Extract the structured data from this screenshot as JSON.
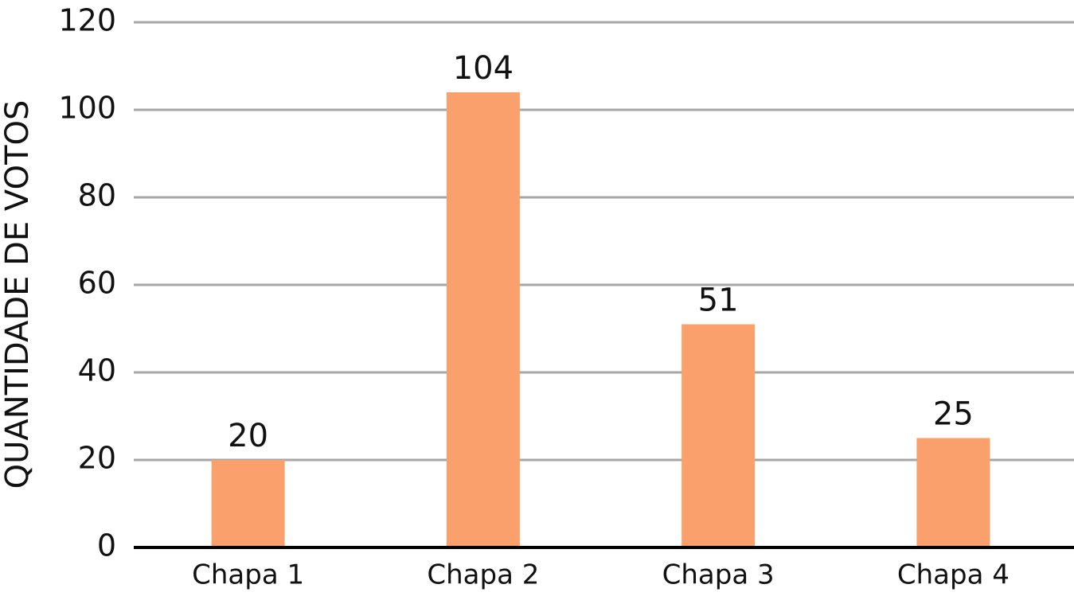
{
  "chart_data": {
    "type": "bar",
    "y_label": "QUANTIDADE DE VOTOS",
    "categories": [
      "Chapa 1",
      "Chapa 2",
      "Chapa 3",
      "Chapa 4"
    ],
    "values": [
      20,
      104,
      51,
      25
    ],
    "color": "#f9a06c",
    "ylim": [
      0,
      120
    ],
    "yticks": [
      0,
      20,
      40,
      60,
      80,
      100,
      120
    ],
    "grid": true,
    "data_labels": true
  }
}
